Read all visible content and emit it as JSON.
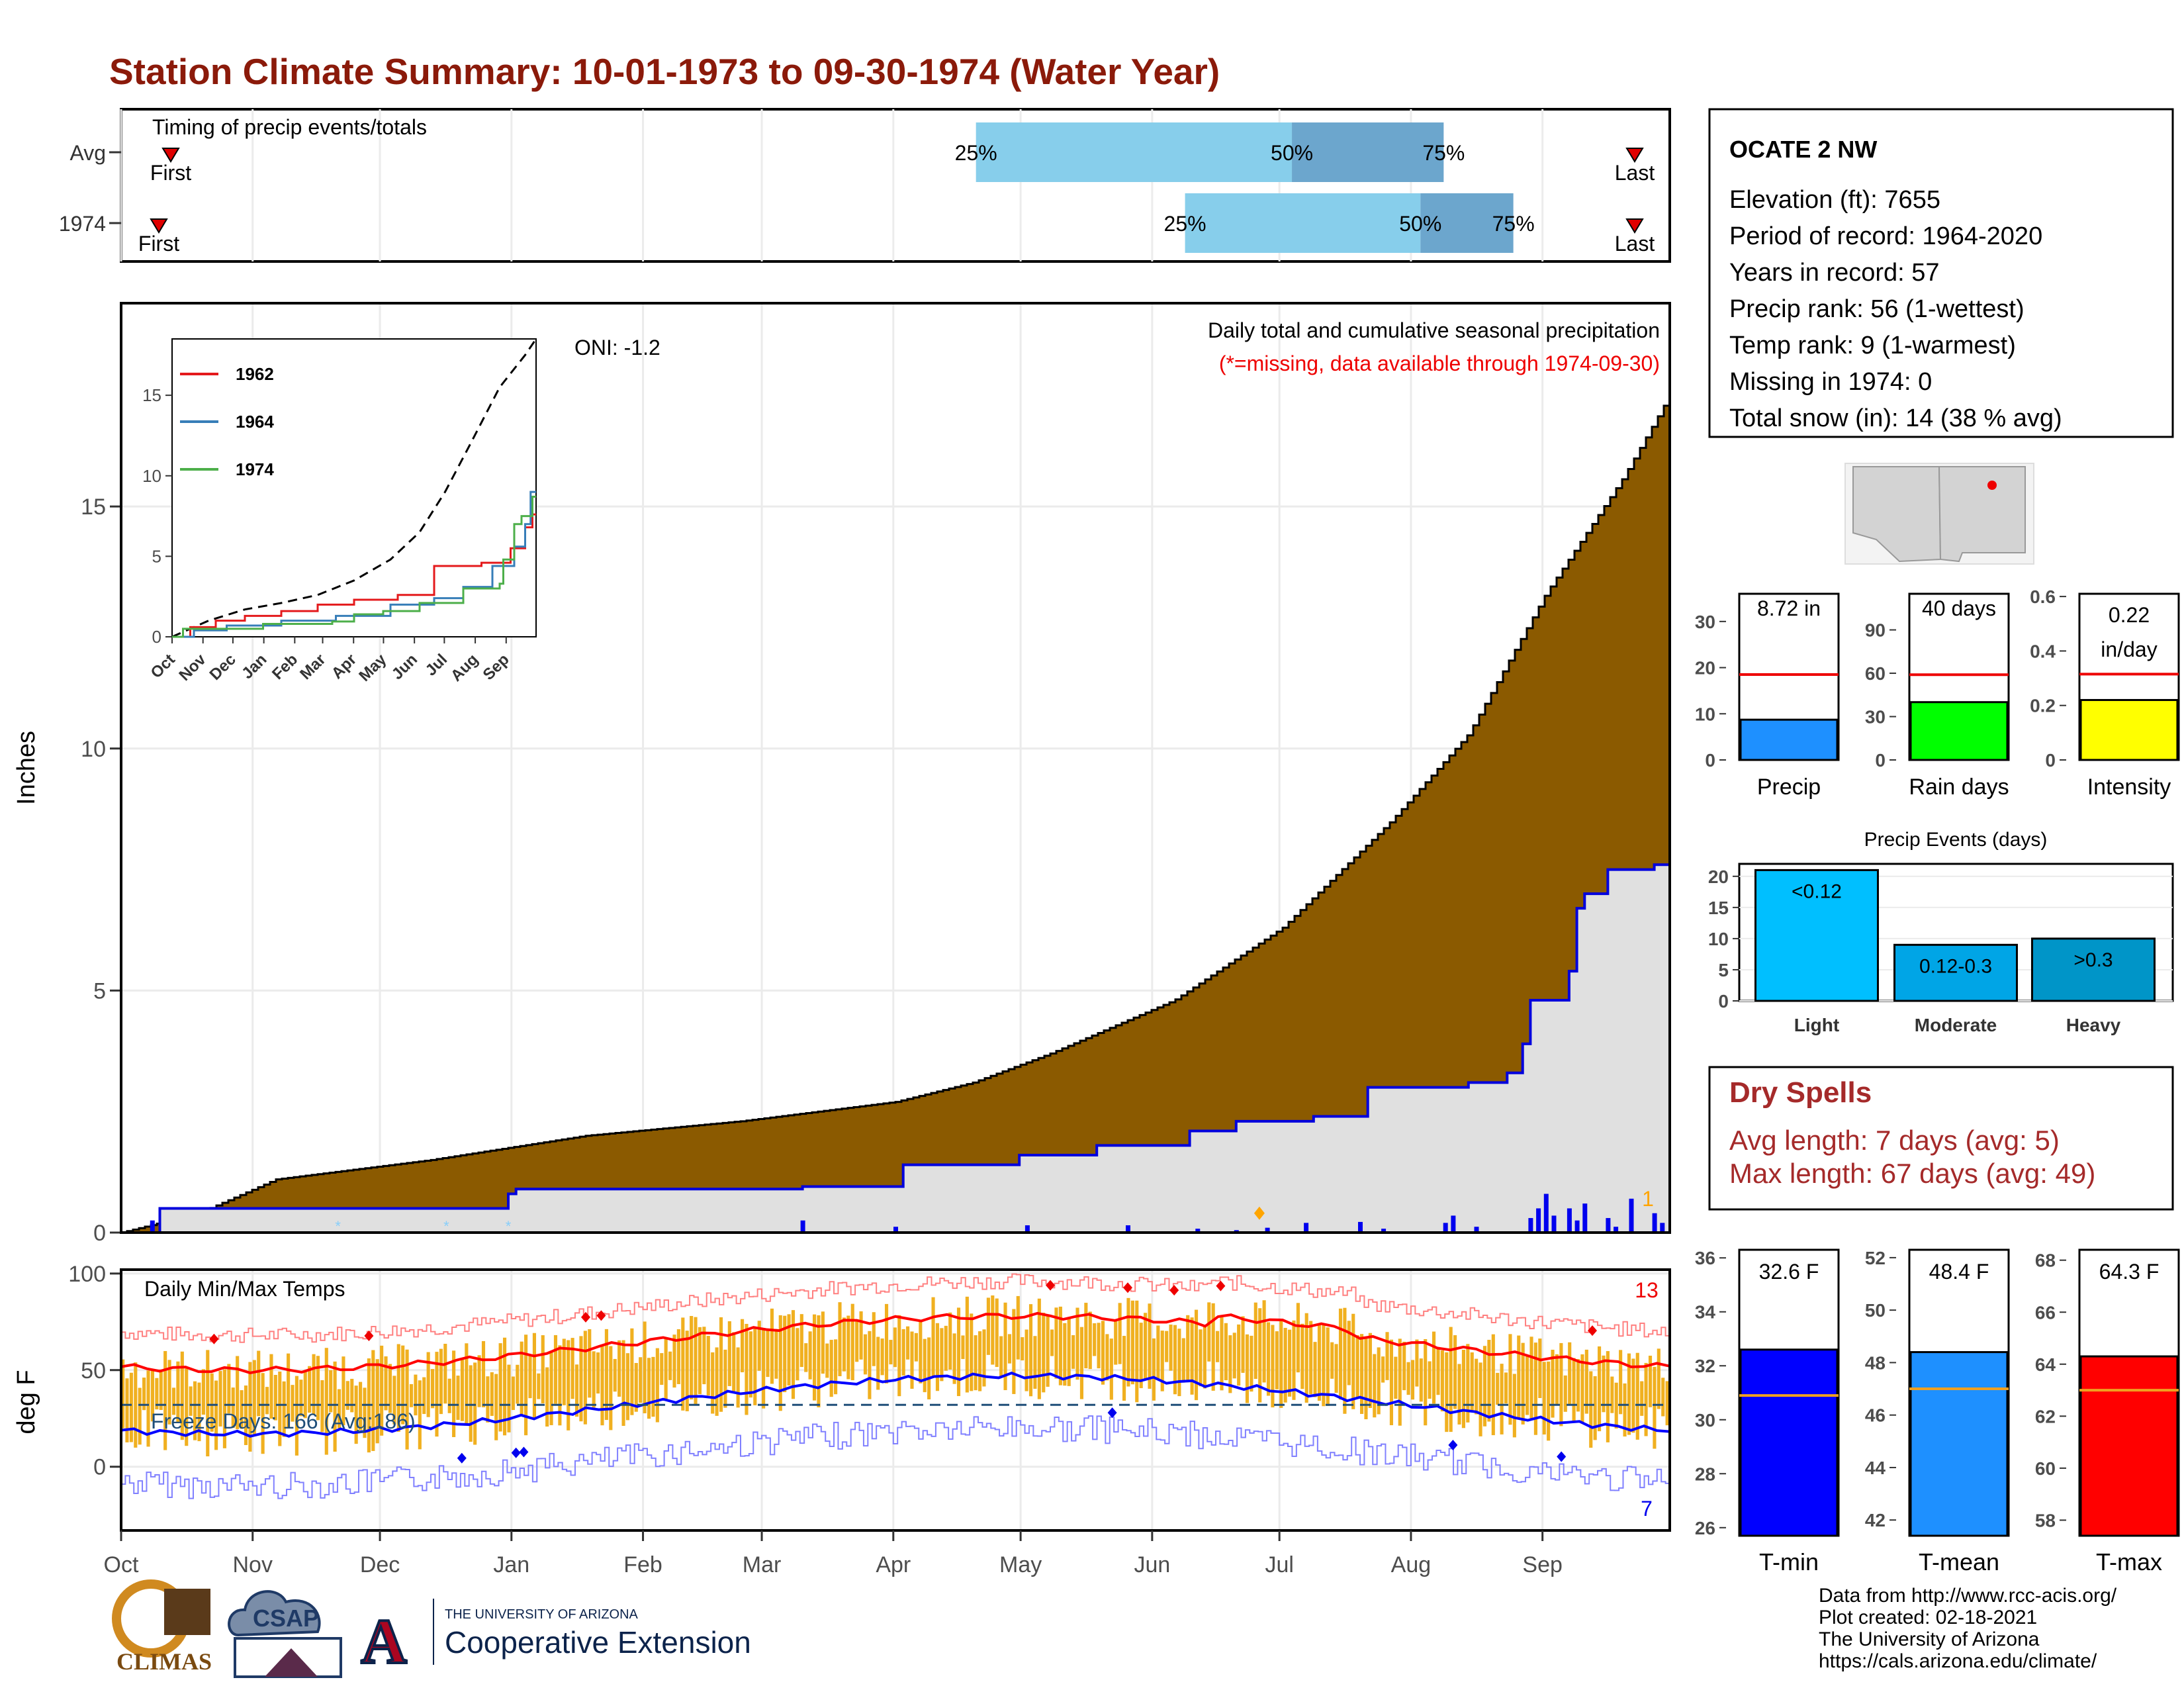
{
  "title": "Station Climate Summary: 10-01-1973 to 09-30-1974 (Water Year)",
  "colors": {
    "title": "#8B1A0A",
    "cum_avg": "#8B5A00",
    "cum_year": "#E0E0E0",
    "daily_bar": "#0000EE",
    "q1": "#87CEEB",
    "q2": "#6CA6CD",
    "tmin": "#0000FF",
    "tmean": "#1E90FF",
    "tmax": "#FF0000",
    "band": "#F0B020"
  },
  "months": [
    "Oct",
    "Nov",
    "Dec",
    "Jan",
    "Feb",
    "Mar",
    "Apr",
    "May",
    "Jun",
    "Jul",
    "Aug",
    "Sep"
  ],
  "timing": {
    "label": "Timing of precip events/totals",
    "rows": [
      {
        "name": "Avg",
        "first_label": "First",
        "last_label": "Last",
        "p25": 0.552,
        "p50": 0.756,
        "p75": 0.854
      },
      {
        "name": "1974",
        "first_label": "First",
        "last_label": "Last",
        "p25": 0.687,
        "p50": 0.839,
        "p75": 0.899
      }
    ],
    "pct_labels": [
      "25%",
      "50%",
      "75%"
    ]
  },
  "precip_panel": {
    "ylabel": "Inches",
    "yticks": [
      0,
      5,
      10,
      15
    ],
    "ymax": 19.2,
    "annotation_title": "Daily total and cumulative seasonal precipitation",
    "annotation_missing": "(*=missing, data available through 1974-09-30)",
    "oni": "ONI: -1.2",
    "corner_count": "1",
    "avg_cum_knots": [
      [
        0,
        0
      ],
      [
        0.05,
        0.4
      ],
      [
        0.1,
        1.1
      ],
      [
        0.2,
        1.5
      ],
      [
        0.3,
        2.0
      ],
      [
        0.4,
        2.3
      ],
      [
        0.5,
        2.7
      ],
      [
        0.55,
        3.1
      ],
      [
        0.6,
        3.7
      ],
      [
        0.68,
        4.8
      ],
      [
        0.75,
        6.3
      ],
      [
        0.82,
        8.5
      ],
      [
        0.87,
        10.3
      ],
      [
        0.92,
        13.2
      ],
      [
        0.97,
        15.6
      ],
      [
        1.0,
        17.3
      ]
    ],
    "year_cum_steps": [
      [
        0,
        0
      ],
      [
        0.025,
        0.5
      ],
      [
        0.25,
        0.8
      ],
      [
        0.255,
        0.9
      ],
      [
        0.44,
        0.95
      ],
      [
        0.505,
        1.4
      ],
      [
        0.58,
        1.6
      ],
      [
        0.63,
        1.8
      ],
      [
        0.69,
        2.1
      ],
      [
        0.72,
        2.3
      ],
      [
        0.77,
        2.4
      ],
      [
        0.805,
        3.0
      ],
      [
        0.87,
        3.1
      ],
      [
        0.895,
        3.3
      ],
      [
        0.905,
        3.9
      ],
      [
        0.91,
        4.8
      ],
      [
        0.935,
        5.4
      ],
      [
        0.94,
        6.7
      ],
      [
        0.945,
        7.0
      ],
      [
        0.96,
        7.5
      ],
      [
        0.99,
        7.6
      ],
      [
        1.0,
        8.72
      ]
    ],
    "daily_bars": [
      [
        0.02,
        0.25
      ],
      [
        0.44,
        0.25
      ],
      [
        0.5,
        0.12
      ],
      [
        0.585,
        0.15
      ],
      [
        0.65,
        0.15
      ],
      [
        0.695,
        0.08
      ],
      [
        0.72,
        0.05
      ],
      [
        0.74,
        0.1
      ],
      [
        0.765,
        0.2
      ],
      [
        0.8,
        0.22
      ],
      [
        0.815,
        0.08
      ],
      [
        0.855,
        0.2
      ],
      [
        0.86,
        0.35
      ],
      [
        0.875,
        0.12
      ],
      [
        0.91,
        0.3
      ],
      [
        0.915,
        0.5
      ],
      [
        0.92,
        0.8
      ],
      [
        0.925,
        0.35
      ],
      [
        0.935,
        0.5
      ],
      [
        0.94,
        0.25
      ],
      [
        0.945,
        0.6
      ],
      [
        0.96,
        0.3
      ],
      [
        0.965,
        0.12
      ],
      [
        0.975,
        0.7
      ],
      [
        0.99,
        0.4
      ],
      [
        0.995,
        0.2
      ]
    ]
  },
  "inset": {
    "legend": [
      "1962",
      "1964",
      "1974"
    ],
    "legend_colors": [
      "#E41A1C",
      "#377EB8",
      "#4DAF4A"
    ],
    "yticks": [
      0,
      5,
      10,
      15
    ],
    "ymax": 18.5,
    "months": [
      "Oct",
      "Nov",
      "Dec",
      "Jan",
      "Feb",
      "Mar",
      "Apr",
      "May",
      "Jun",
      "Jul",
      "Aug",
      "Sep"
    ]
  },
  "temp_panel": {
    "ylabel": "deg F",
    "title": "Daily Min/Max Temps",
    "yticks": [
      0,
      50,
      100
    ],
    "ymin": -33,
    "ymax": 102,
    "freeze_label": "Freeze Days: 166 (Avg:186)",
    "freeze_line": 32,
    "count_max": "13",
    "count_min": "7"
  },
  "station": {
    "name": "OCATE 2 NW",
    "lines": [
      "Elevation (ft): 7655",
      "Period of record: 1964-2020",
      "Years in record: 57",
      "Precip rank: 56 (1-wettest)",
      "Temp rank: 9 (1-warmest)",
      "Missing in 1974: 0",
      "Total snow (in): 14 (38 % avg)"
    ]
  },
  "mini_bars": [
    {
      "label": "Precip",
      "value_label": "8.72 in",
      "value": 8.72,
      "avg": 18.5,
      "ymax": 36,
      "yticks": [
        0,
        10,
        20,
        30
      ],
      "color": "#1E90FF"
    },
    {
      "label": "Rain days",
      "value_label": "40 days",
      "value": 40,
      "avg": 59,
      "ymax": 115,
      "yticks": [
        0,
        30,
        60,
        90
      ],
      "color": "#00FF00"
    },
    {
      "label": "Intensity",
      "value_label": "0.22",
      "value_label2": "in/day",
      "value": 0.22,
      "avg": 0.315,
      "ymax": 0.61,
      "yticks": [
        0.0,
        0.2,
        0.4,
        0.6
      ],
      "color": "#FFFF00"
    }
  ],
  "precip_events": {
    "title": "Precip Events (days)",
    "yticks": [
      0,
      5,
      10,
      15,
      20
    ],
    "ymax": 22,
    "bars": [
      {
        "category": "Light",
        "label": "<0.12",
        "value": 21,
        "color": "#00BFFF"
      },
      {
        "category": "Moderate",
        "label": "0.12-0.3",
        "value": 9,
        "color": "#00A5E6"
      },
      {
        "category": "Heavy",
        "label": ">0.3",
        "value": 10,
        "color": "#0095C8"
      }
    ]
  },
  "dry_spells": {
    "title": "Dry Spells",
    "avg": "Avg length: 7 days (avg: 5)",
    "max": "Max length: 67 days (avg: 49)"
  },
  "temp_bars": [
    {
      "label": "T-min",
      "value_label": "32.6 F",
      "value": 32.6,
      "avg": 30.9,
      "ymin": 25.7,
      "ymax": 36.3,
      "yticks": [
        26,
        28,
        30,
        32,
        34,
        36
      ],
      "color": "#0000FF"
    },
    {
      "label": "T-mean",
      "value_label": "48.4 F",
      "value": 48.4,
      "avg": 47.0,
      "ymin": 41.4,
      "ymax": 52.3,
      "yticks": [
        42,
        44,
        46,
        48,
        50,
        52
      ],
      "color": "#1E90FF"
    },
    {
      "label": "T-max",
      "value_label": "64.3 F",
      "value": 64.3,
      "avg": 63.0,
      "ymin": 57.4,
      "ymax": 68.4,
      "yticks": [
        58,
        60,
        62,
        64,
        66,
        68
      ],
      "color": "#FF0000"
    }
  ],
  "footer": {
    "lines": [
      "Data from http://www.rcc-acis.org/",
      "Plot created: 02-18-2021",
      "The University of Arizona",
      "https://cals.arizona.edu/climate/"
    ],
    "logo_climas": "CLIMAS",
    "logo_csap": "CSAP",
    "logo_ua_small": "THE UNIVERSITY OF ARIZONA",
    "logo_ua_big": "Cooperative Extension"
  }
}
